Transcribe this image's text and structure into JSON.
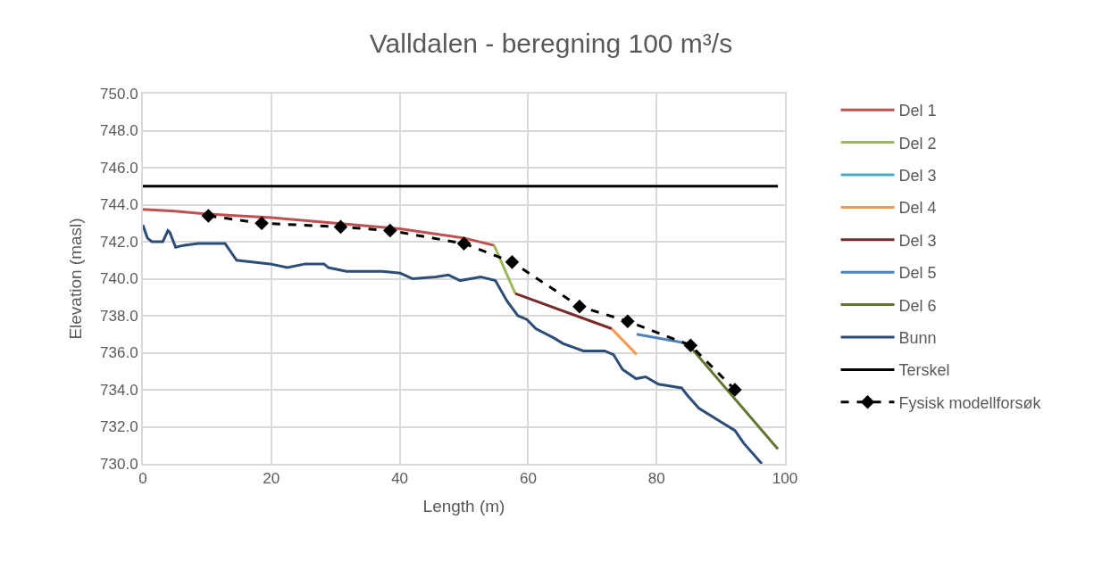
{
  "chart_data": {
    "type": "line",
    "title": "Valldalen - beregning 100 m³/s",
    "xlabel": "Length (m)",
    "ylabel": "Elevation (masl)",
    "xlim": [
      0,
      100
    ],
    "xticks": [
      0,
      20,
      40,
      60,
      80,
      100
    ],
    "ylim": [
      730,
      750
    ],
    "yticks": [
      {
        "value": 730,
        "label": "730.0"
      },
      {
        "value": 732,
        "label": "732.0"
      },
      {
        "value": 734,
        "label": "734.0"
      },
      {
        "value": 736,
        "label": "736.0"
      },
      {
        "value": 738,
        "label": "738.0"
      },
      {
        "value": 740,
        "label": "740.0"
      },
      {
        "value": 742,
        "label": "742.0"
      },
      {
        "value": 744,
        "label": "744.0"
      },
      {
        "value": 746,
        "label": "746.0"
      },
      {
        "value": 748,
        "label": "748.0"
      },
      {
        "value": 750,
        "label": "750.0"
      }
    ],
    "grid": true,
    "legend": "right",
    "series": [
      {
        "name": "Del 1",
        "color": "#c0504d",
        "x": [
          0,
          5,
          10,
          20,
          30,
          40,
          50,
          54.7
        ],
        "values": [
          743.75,
          743.65,
          743.5,
          743.3,
          743.0,
          742.7,
          742.2,
          741.8
        ]
      },
      {
        "name": "Del 2",
        "color": "#9bbb59",
        "x": [
          54.7,
          58.0
        ],
        "values": [
          741.8,
          739.2
        ]
      },
      {
        "name": "Del 3",
        "color": "#4bacc6",
        "values": [
          null
        ]
      },
      {
        "name": "Del 4",
        "color": "#f79646",
        "x": [
          73.0,
          76.9
        ],
        "values": [
          737.3,
          735.9
        ]
      },
      {
        "name": "Del 3",
        "color": "#772c2a",
        "x": [
          58.0,
          73.0
        ],
        "values": [
          739.2,
          737.3
        ]
      },
      {
        "name": "Del 5",
        "color": "#4f81bd",
        "x": [
          76.9,
          84.8
        ],
        "values": [
          737.0,
          736.5
        ]
      },
      {
        "name": "Del 6",
        "color": "#5f7530",
        "x": [
          84.8,
          98.9
        ],
        "values": [
          736.5,
          730.8
        ]
      },
      {
        "name": "Bunn",
        "color": "#2c4d75",
        "x": [
          0,
          0.7,
          1.4,
          3.1,
          3.9,
          4.2,
          5.1,
          6.3,
          8.6,
          12.8,
          14.6,
          17.0,
          19.8,
          22.5,
          25.3,
          28.2,
          28.9,
          31.7,
          37.3,
          40.1,
          42.0,
          45.6,
          47.6,
          49.4,
          52.6,
          54.9,
          56.7,
          58.4,
          59.8,
          61.2,
          64.0,
          65.4,
          68.6,
          71.9,
          73.3,
          74.7,
          76.8,
          78.3,
          80.3,
          83.9,
          84.8,
          86.6,
          89.4,
          92.2,
          93.6,
          96.4
        ],
        "values": [
          742.9,
          742.2,
          742.0,
          742.0,
          742.6,
          742.5,
          741.7,
          741.8,
          741.9,
          741.9,
          741.0,
          740.9,
          740.8,
          740.6,
          740.8,
          740.8,
          740.6,
          740.4,
          740.4,
          740.3,
          740.0,
          740.1,
          740.2,
          739.9,
          740.1,
          739.9,
          738.8,
          738.0,
          737.8,
          737.3,
          736.8,
          736.5,
          736.1,
          736.1,
          735.9,
          735.1,
          734.6,
          734.7,
          734.3,
          734.1,
          733.7,
          733.0,
          732.4,
          731.8,
          731.1,
          730.0
        ]
      },
      {
        "name": "Terskel",
        "color": "#000000",
        "x": [
          0,
          98.9
        ],
        "values": [
          745,
          745
        ]
      },
      {
        "name": "Fysisk modellforsøk",
        "color": "#000000",
        "marker": "diamond",
        "line_style": "dashed",
        "x": [
          10.2,
          18.5,
          30.8,
          38.5,
          50,
          57.5,
          68,
          75.5,
          85.3,
          92.2
        ],
        "values": [
          743.4,
          743.0,
          742.8,
          742.6,
          741.9,
          740.9,
          738.5,
          737.7,
          736.4,
          734.0
        ]
      }
    ]
  }
}
